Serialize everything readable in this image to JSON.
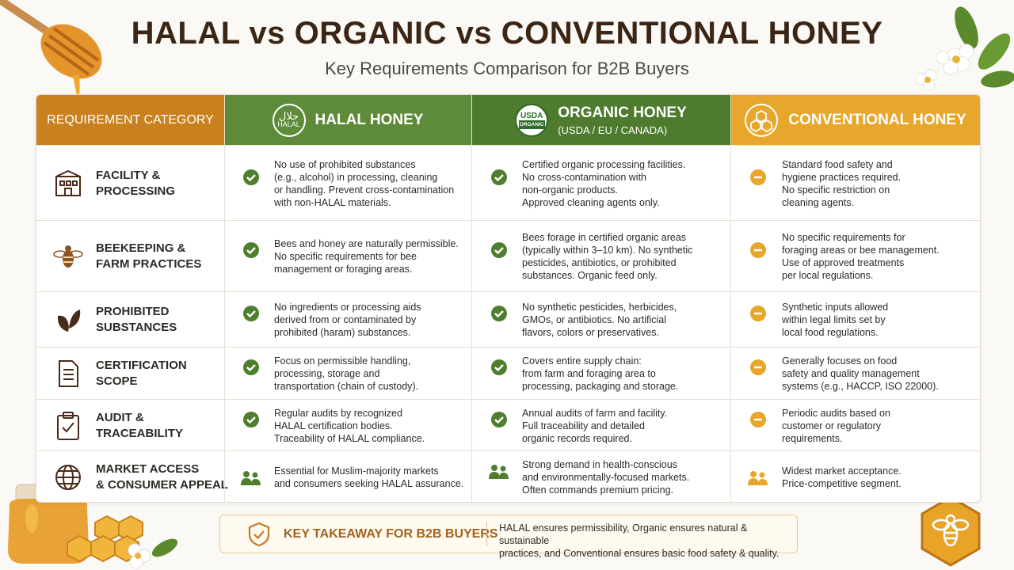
{
  "header": {
    "title": "HALAL vs ORGANIC vs CONVENTIONAL HONEY",
    "subtitle": "Key Requirements Comparison for B2B Buyers"
  },
  "table": {
    "columns": [
      {
        "label": "REQUIREMENT CATEGORY"
      },
      {
        "label": "HALAL HONEY",
        "badge": [
          "حلال",
          "HALAL"
        ]
      },
      {
        "label": "ORGANIC HONEY",
        "sublabel": "(USDA / EU / CANADA)",
        "badge": [
          "USDA",
          "ORGANIC"
        ]
      },
      {
        "label": "CONVENTIONAL HONEY"
      }
    ],
    "rows": [
      {
        "category": [
          "FACILITY &",
          "PROCESSING"
        ],
        "cells": [
          [
            "No use of prohibited substances",
            "(e.g., alcohol) in processing, cleaning",
            "or handling. Prevent cross-contamination",
            "with non-HALAL materials."
          ],
          [
            "Certified organic processing facilities.",
            "No cross-contamination with",
            "non-organic products.",
            "Approved cleaning agents only."
          ],
          [
            "Standard food safety and",
            "hygiene practices required.",
            "No specific restriction on",
            "cleaning agents."
          ]
        ]
      },
      {
        "category": [
          "BEEKEEPING &",
          "FARM PRACTICES"
        ],
        "cells": [
          [
            "Bees and honey are naturally permissible.",
            "No specific requirements for bee",
            "management or foraging areas."
          ],
          [
            "Bees forage in certified organic areas",
            "(typically within 3–10 km). No synthetic",
            "pesticides, antibiotics, or prohibited",
            "substances. Organic feed only."
          ],
          [
            "No specific requirements for",
            "foraging areas or bee management.",
            "Use of approved treatments",
            "per local regulations."
          ]
        ]
      },
      {
        "category": [
          "PROHIBITED",
          "SUBSTANCES"
        ],
        "cells": [
          [
            "No ingredients or processing aids",
            "derived from or contaminated by",
            "prohibited (haram) substances."
          ],
          [
            "No synthetic pesticides, herbicides,",
            "GMOs, or antibiotics. No artificial",
            "flavors, colors or preservatives."
          ],
          [
            "Synthetic inputs allowed",
            "within legal limits set by",
            "local food regulations."
          ]
        ]
      },
      {
        "category": [
          "CERTIFICATION",
          "SCOPE"
        ],
        "cells": [
          [
            "Focus on permissible handling,",
            "processing, storage and",
            "transportation (chain of custody)."
          ],
          [
            "Covers entire supply chain:",
            "from farm and foraging area to",
            "processing, packaging and storage."
          ],
          [
            "Generally focuses on food",
            "safety and quality management",
            "systems (e.g., HACCP, ISO 22000)."
          ]
        ]
      },
      {
        "category": [
          "AUDIT &",
          "TRACEABILITY"
        ],
        "cells": [
          [
            "Regular audits by recognized",
            "HALAL certification bodies.",
            "Traceability of HALAL compliance."
          ],
          [
            "Annual audits of farm and facility.",
            "Full traceability and detailed",
            "organic records required."
          ],
          [
            "Periodic audits based on",
            "customer or regulatory",
            "requirements."
          ]
        ]
      },
      {
        "category": [
          "MARKET ACCESS",
          "& CONSUMER APPEAL"
        ],
        "cells": [
          [
            "Essential for Muslim-majority markets",
            "and consumers seeking HALAL assurance."
          ],
          [
            "Strong demand in health-conscious",
            "and environmentally-focused markets.",
            "Often commands premium pricing."
          ],
          [
            "Widest market acceptance.",
            "Price-competitive segment."
          ]
        ]
      }
    ]
  },
  "takeaway": {
    "title": "KEY TAKEAWAY FOR B2B BUYERS",
    "text": [
      "HALAL ensures permissibility, Organic ensures natural & sustainable",
      "practices, and Conventional ensures basic food safety & quality."
    ]
  }
}
